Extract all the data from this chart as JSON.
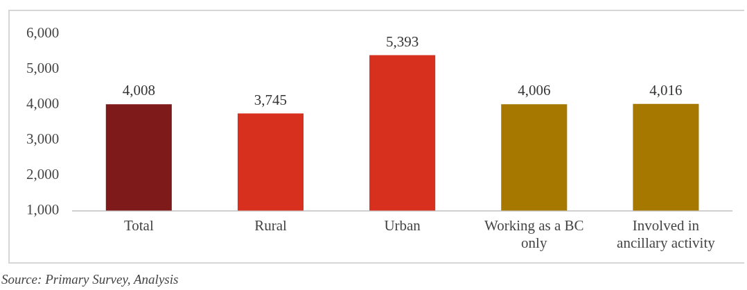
{
  "chart_data": {
    "type": "bar",
    "categories": [
      "Total",
      "Rural",
      "Urban",
      "Working as a BC only",
      "Involved in ancillary activity"
    ],
    "values": [
      4008,
      3745,
      5393,
      4006,
      4016
    ],
    "value_labels": [
      "4,008",
      "3,745",
      "5,393",
      "4,006",
      "4,016"
    ],
    "colors": [
      "#7f1a1a",
      "#d8301f",
      "#d8301f",
      "#a67800",
      "#a67800"
    ],
    "ylim": [
      1000,
      6000
    ],
    "yticks": [
      {
        "value": 1000,
        "label": "1,000"
      },
      {
        "value": 2000,
        "label": "2,000"
      },
      {
        "value": 3000,
        "label": "3,000"
      },
      {
        "value": 4000,
        "label": "4,000"
      },
      {
        "value": 5000,
        "label": "5,000"
      },
      {
        "value": 6000,
        "label": "6,000"
      }
    ],
    "grid": false,
    "legend": false,
    "annotations": [
      "Source: Primary Survey, Analysis"
    ]
  }
}
